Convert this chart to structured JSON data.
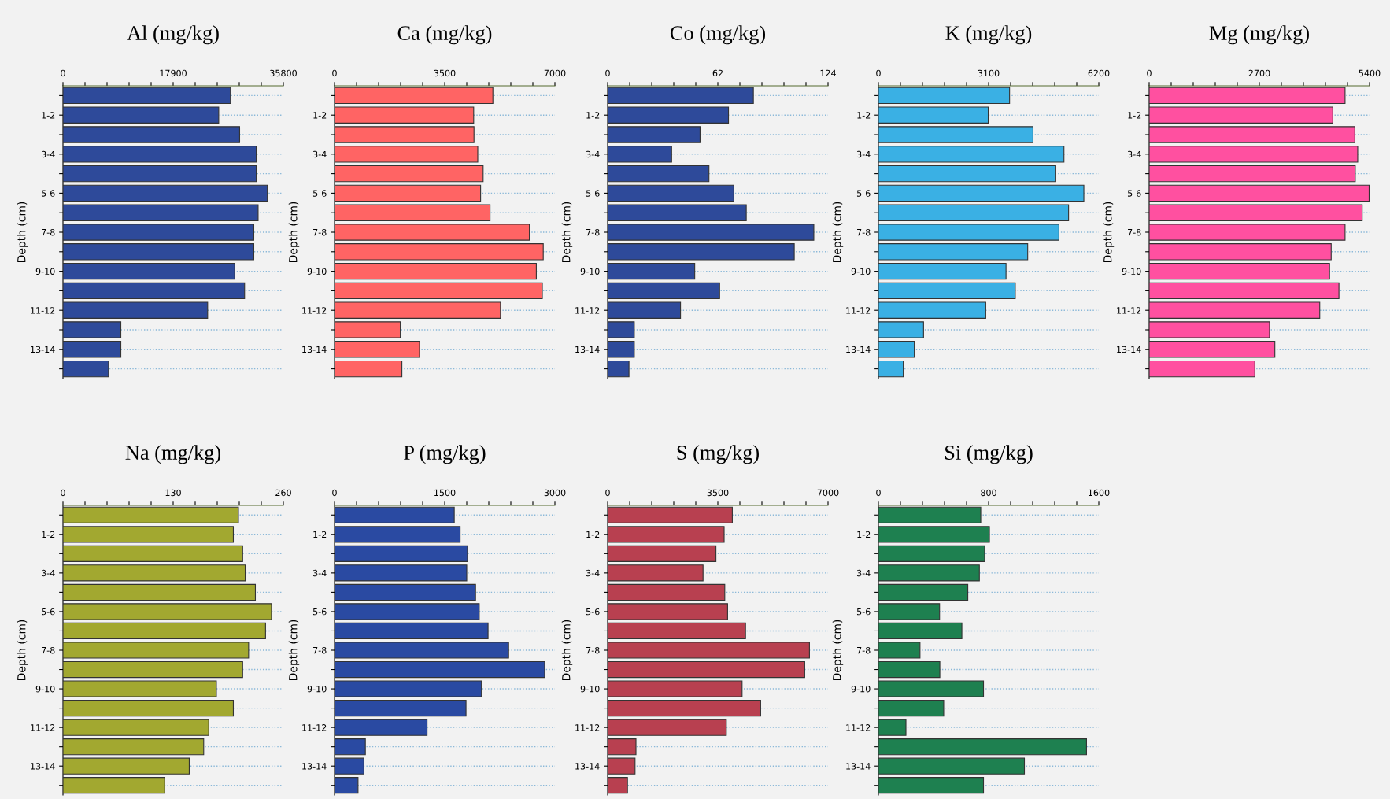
{
  "chart_data": [
    {
      "type": "bar",
      "orientation": "horizontal",
      "title": "Al (mg/kg)",
      "ylabel": "Depth (cm)",
      "grid": "y",
      "categories": [
        null,
        "1-2",
        null,
        "3-4",
        null,
        "5-6",
        null,
        "7-8",
        null,
        "9-10",
        null,
        "11-12",
        null,
        "13-14",
        null
      ],
      "xlim": [
        0,
        35800
      ],
      "xticks": [
        0,
        {
          "value": 3580,
          "label": null
        },
        {
          "value": 7160,
          "label": null
        },
        {
          "value": 10740,
          "label": null
        },
        {
          "value": 14320,
          "label": null
        },
        17900,
        {
          "value": 21480,
          "label": null
        },
        {
          "value": 25060,
          "label": null
        },
        {
          "value": 28640,
          "label": null
        },
        {
          "value": 32220,
          "label": null
        },
        35800
      ],
      "series": [
        {
          "color": "#2e4a9a",
          "values": [
            27200,
            25300,
            28700,
            31400,
            31400,
            33200,
            31700,
            31000,
            31000,
            27900,
            29500,
            23500,
            9400,
            9400,
            7400
          ]
        }
      ]
    },
    {
      "type": "bar",
      "orientation": "horizontal",
      "title": "Ca (mg/kg)",
      "ylabel": "Depth (cm)",
      "grid": "y",
      "categories": [
        null,
        "1-2",
        null,
        "3-4",
        null,
        "5-6",
        null,
        "7-8",
        null,
        "9-10",
        null,
        "11-12",
        null,
        "13-14",
        null
      ],
      "xlim": [
        0,
        7000
      ],
      "xticks": [
        0,
        {
          "value": 700,
          "label": null
        },
        {
          "value": 1400,
          "label": null
        },
        {
          "value": 2100,
          "label": null
        },
        {
          "value": 2800,
          "label": null
        },
        3500,
        {
          "value": 4200,
          "label": null
        },
        {
          "value": 4900,
          "label": null
        },
        {
          "value": 5600,
          "label": null
        },
        {
          "value": 6300,
          "label": null
        },
        7000
      ],
      "series": [
        {
          "color": "#ff6464",
          "values": [
            5030,
            4420,
            4430,
            4550,
            4720,
            4640,
            4940,
            6190,
            6630,
            6410,
            6600,
            5270,
            2090,
            2700,
            2140
          ]
        }
      ]
    },
    {
      "type": "bar",
      "orientation": "horizontal",
      "title": "Co (mg/kg)",
      "ylabel": "Depth (cm)",
      "grid": "y",
      "categories": [
        null,
        "1-2",
        null,
        "3-4",
        null,
        "5-6",
        null,
        "7-8",
        null,
        "9-10",
        null,
        "11-12",
        null,
        "13-14",
        null
      ],
      "xlim": [
        0,
        124
      ],
      "xticks": [
        0,
        {
          "value": 12.4,
          "label": null
        },
        {
          "value": 24.8,
          "label": null
        },
        {
          "value": 37.2,
          "label": null
        },
        {
          "value": 49.6,
          "label": null
        },
        62,
        {
          "value": 74.4,
          "label": null
        },
        {
          "value": 86.8,
          "label": null
        },
        {
          "value": 99.2,
          "label": null
        },
        {
          "value": 111.6,
          "label": null
        },
        124
      ],
      "series": [
        {
          "color": "#2e4a9a",
          "values": [
            82,
            68,
            52,
            36,
            57,
            71,
            78,
            116,
            105,
            49,
            63,
            41,
            15,
            15,
            12
          ]
        }
      ]
    },
    {
      "type": "bar",
      "orientation": "horizontal",
      "title": "K (mg/kg)",
      "ylabel": "Depth (cm)",
      "grid": "y",
      "categories": [
        null,
        "1-2",
        null,
        "3-4",
        null,
        "5-6",
        null,
        "7-8",
        null,
        "9-10",
        null,
        "11-12",
        null,
        "13-14",
        null
      ],
      "xlim": [
        0,
        6200
      ],
      "xticks": [
        0,
        {
          "value": 620,
          "label": null
        },
        {
          "value": 1240,
          "label": null
        },
        {
          "value": 1860,
          "label": null
        },
        {
          "value": 2480,
          "label": null
        },
        3100,
        {
          "value": 3720,
          "label": null
        },
        {
          "value": 4340,
          "label": null
        },
        {
          "value": 4960,
          "label": null
        },
        {
          "value": 5580,
          "label": null
        },
        6200
      ],
      "series": [
        {
          "color": "#3ab0e4",
          "values": [
            3690,
            3090,
            4350,
            5220,
            4990,
            5780,
            5350,
            5080,
            4200,
            3590,
            3850,
            3020,
            1270,
            1010,
            700
          ]
        }
      ]
    },
    {
      "type": "bar",
      "orientation": "horizontal",
      "title": "Mg (mg/kg)",
      "ylabel": "Depth (cm)",
      "grid": "y",
      "categories": [
        null,
        "1-2",
        null,
        "3-4",
        null,
        "5-6",
        null,
        "7-8",
        null,
        "9-10",
        null,
        "11-12",
        null,
        "13-14",
        null
      ],
      "xlim": [
        0,
        5400
      ],
      "xticks": [
        0,
        {
          "value": 540,
          "label": null
        },
        {
          "value": 1080,
          "label": null
        },
        {
          "value": 1620,
          "label": null
        },
        {
          "value": 2160,
          "label": null
        },
        2700,
        {
          "value": 3240,
          "label": null
        },
        {
          "value": 3780,
          "label": null
        },
        {
          "value": 4320,
          "label": null
        },
        {
          "value": 4860,
          "label": null
        },
        5400
      ],
      "series": [
        {
          "color": "#ff50a0",
          "values": [
            4800,
            4500,
            5040,
            5110,
            5050,
            5390,
            5220,
            4800,
            4460,
            4420,
            4650,
            4180,
            2950,
            3080,
            2590
          ]
        }
      ]
    },
    {
      "type": "bar",
      "orientation": "horizontal",
      "title": "Na (mg/kg)",
      "ylabel": "Depth (cm)",
      "grid": "y",
      "categories": [
        null,
        "1-2",
        null,
        "3-4",
        null,
        "5-6",
        null,
        "7-8",
        null,
        "9-10",
        null,
        "11-12",
        null,
        "13-14",
        null
      ],
      "xlim": [
        0,
        260
      ],
      "xticks": [
        0,
        {
          "value": 26,
          "label": null
        },
        {
          "value": 52,
          "label": null
        },
        {
          "value": 78,
          "label": null
        },
        {
          "value": 104,
          "label": null
        },
        130,
        {
          "value": 156,
          "label": null
        },
        {
          "value": 182,
          "label": null
        },
        {
          "value": 208,
          "label": null
        },
        {
          "value": 234,
          "label": null
        },
        260
      ],
      "series": [
        {
          "color": "#a2a830",
          "values": [
            207,
            201,
            212,
            215,
            227,
            246,
            239,
            219,
            212,
            181,
            201,
            172,
            166,
            149,
            120
          ]
        }
      ]
    },
    {
      "type": "bar",
      "orientation": "horizontal",
      "title": "P (mg/kg)",
      "ylabel": "Depth (cm)",
      "grid": "y",
      "categories": [
        null,
        "1-2",
        null,
        "3-4",
        null,
        "5-6",
        null,
        "7-8",
        null,
        "9-10",
        null,
        "11-12",
        null,
        "13-14",
        null
      ],
      "xlim": [
        0,
        3000
      ],
      "xticks": [
        0,
        {
          "value": 300,
          "label": null
        },
        {
          "value": 600,
          "label": null
        },
        {
          "value": 900,
          "label": null
        },
        {
          "value": 1200,
          "label": null
        },
        1500,
        {
          "value": 1800,
          "label": null
        },
        {
          "value": 2100,
          "label": null
        },
        {
          "value": 2400,
          "label": null
        },
        {
          "value": 2700,
          "label": null
        },
        3000
      ],
      "series": [
        {
          "color": "#2a4aa2",
          "values": [
            1630,
            1710,
            1810,
            1800,
            1920,
            1970,
            2090,
            2370,
            2860,
            2000,
            1790,
            1260,
            420,
            400,
            320
          ]
        }
      ]
    },
    {
      "type": "bar",
      "orientation": "horizontal",
      "title": "S (mg/kg)",
      "ylabel": "Depth (cm)",
      "grid": "y",
      "categories": [
        null,
        "1-2",
        null,
        "3-4",
        null,
        "5-6",
        null,
        "7-8",
        null,
        "9-10",
        null,
        "11-12",
        null,
        "13-14",
        null
      ],
      "xlim": [
        0,
        7000
      ],
      "xticks": [
        0,
        {
          "value": 700,
          "label": null
        },
        {
          "value": 1400,
          "label": null
        },
        {
          "value": 2100,
          "label": null
        },
        {
          "value": 2800,
          "label": null
        },
        3500,
        {
          "value": 4200,
          "label": null
        },
        {
          "value": 4900,
          "label": null
        },
        {
          "value": 5600,
          "label": null
        },
        {
          "value": 6300,
          "label": null
        },
        7000
      ],
      "series": [
        {
          "color": "#b84050",
          "values": [
            3960,
            3700,
            3440,
            3030,
            3720,
            3810,
            4380,
            6410,
            6260,
            4270,
            4860,
            3770,
            900,
            870,
            630
          ]
        }
      ]
    },
    {
      "type": "bar",
      "orientation": "horizontal",
      "title": "Si (mg/kg)",
      "ylabel": "Depth (cm)",
      "grid": "y",
      "categories": [
        null,
        "1-2",
        null,
        "3-4",
        null,
        "5-6",
        null,
        "7-8",
        null,
        "9-10",
        null,
        "11-12",
        null,
        "13-14",
        null
      ],
      "xlim": [
        0,
        1600
      ],
      "xticks": [
        0,
        {
          "value": 160,
          "label": null
        },
        {
          "value": 320,
          "label": null
        },
        {
          "value": 480,
          "label": null
        },
        {
          "value": 640,
          "label": null
        },
        800,
        {
          "value": 960,
          "label": null
        },
        {
          "value": 1120,
          "label": null
        },
        {
          "value": 1280,
          "label": null
        },
        {
          "value": 1440,
          "label": null
        },
        1600
      ],
      "series": [
        {
          "color": "#1e8050",
          "values": [
            743,
            806,
            771,
            733,
            649,
            444,
            606,
            302,
            446,
            763,
            474,
            200,
            1511,
            1060,
            763
          ]
        }
      ]
    }
  ]
}
